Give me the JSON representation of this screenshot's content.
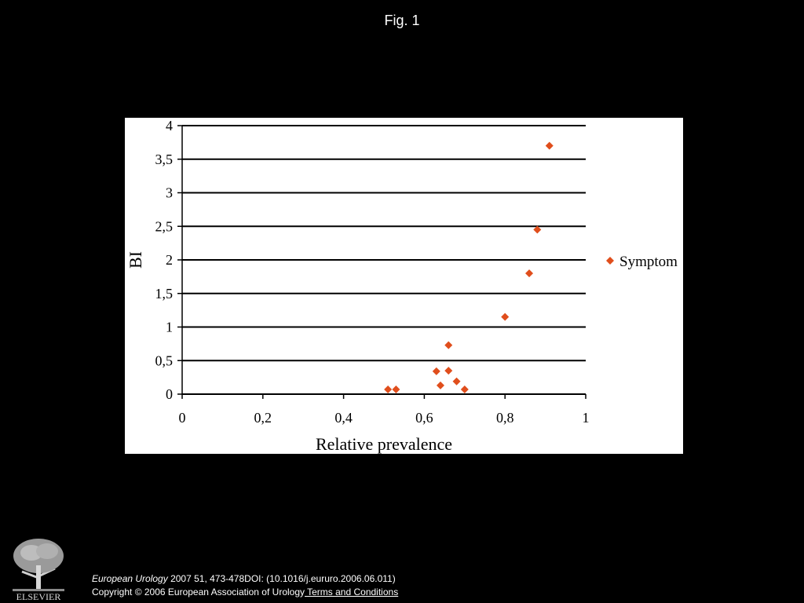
{
  "figure": {
    "title": "Fig. 1"
  },
  "chart_data": {
    "type": "scatter",
    "xlabel": "Relative prevalence",
    "ylabel": "BI",
    "xlim": [
      0,
      1
    ],
    "ylim": [
      0,
      4
    ],
    "x_ticks": [
      0,
      0.2,
      0.4,
      0.6,
      0.8,
      1
    ],
    "x_tick_labels": [
      "0",
      "0,2",
      "0,4",
      "0,6",
      "0,8",
      "1"
    ],
    "y_ticks": [
      0,
      0.5,
      1,
      1.5,
      2,
      2.5,
      3,
      3.5,
      4
    ],
    "y_tick_labels": [
      "0",
      "0,5",
      "1",
      "1,5",
      "2",
      "2,5",
      "3",
      "3,5",
      "4"
    ],
    "grid": "horizontal",
    "legend_position": "right",
    "marker_color": "#e04e1c",
    "marker": "diamond",
    "series": [
      {
        "name": "Symptom",
        "points": [
          {
            "x": 0.51,
            "y": 0.07
          },
          {
            "x": 0.53,
            "y": 0.07
          },
          {
            "x": 0.63,
            "y": 0.34
          },
          {
            "x": 0.64,
            "y": 0.13
          },
          {
            "x": 0.66,
            "y": 0.35
          },
          {
            "x": 0.66,
            "y": 0.73
          },
          {
            "x": 0.68,
            "y": 0.19
          },
          {
            "x": 0.7,
            "y": 0.07
          },
          {
            "x": 0.8,
            "y": 1.15
          },
          {
            "x": 0.86,
            "y": 1.8
          },
          {
            "x": 0.88,
            "y": 2.45
          },
          {
            "x": 0.91,
            "y": 3.7
          }
        ]
      }
    ]
  },
  "footer": {
    "publisher_logo_text": "ELSEVIER",
    "journal": "European Urology",
    "citation_rest": " 2007 51, 473-478DOI: (10.1016/j.eururo.2006.06.011)",
    "copyright": "Copyright © 2006 European Association of Urology",
    "terms_link": " Terms and Conditions"
  }
}
